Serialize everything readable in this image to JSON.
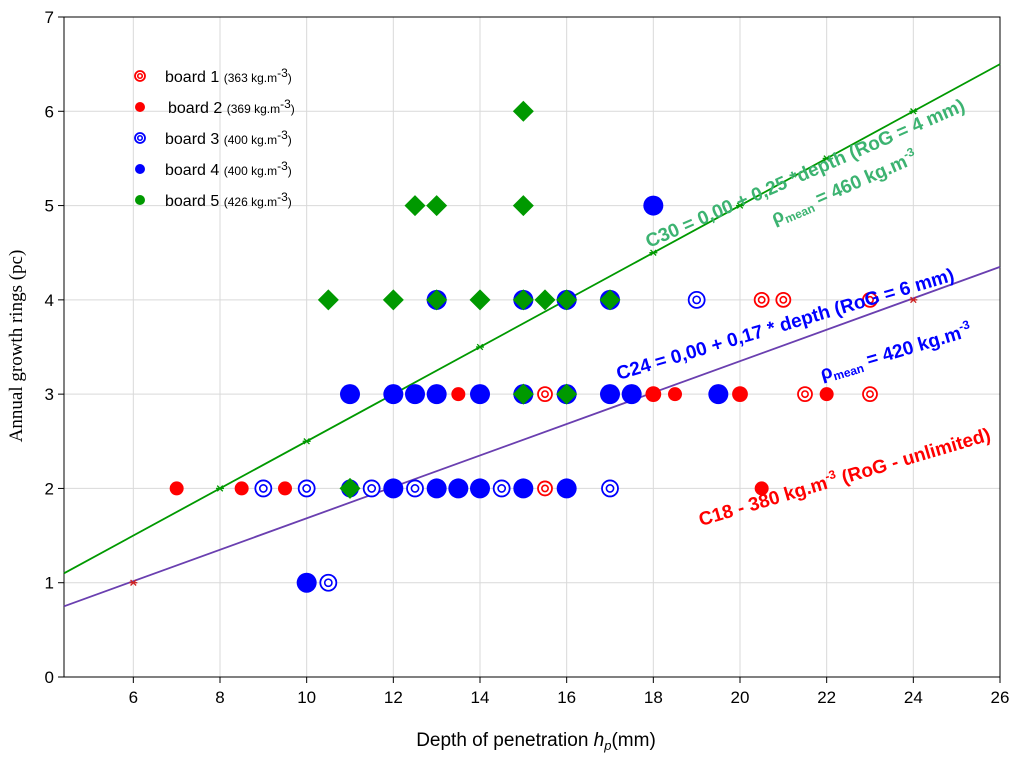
{
  "chart_data": {
    "type": "scatter",
    "xlabel_main": "Depth of penetration ",
    "xlabel_var": "h",
    "xlabel_sub": "p",
    "xlabel_unit": "(mm)",
    "ylabel": "Annual growth rings (pc)",
    "xlim": [
      4.4,
      26
    ],
    "ylim": [
      0,
      7
    ],
    "x_ticks": [
      6,
      8,
      10,
      12,
      14,
      16,
      18,
      20,
      22,
      24,
      26
    ],
    "y_ticks": [
      0,
      1,
      2,
      3,
      4,
      5,
      6,
      7
    ],
    "grid": true,
    "legend_placement": "top-left",
    "series": [
      {
        "name": "board 1",
        "name_detail": "(363 kg.m",
        "name_exp": "-3",
        "name_close": ")",
        "marker": "open-circle",
        "color": "#ff0000",
        "points": [
          [
            15.5,
            2
          ],
          [
            15.5,
            3
          ],
          [
            18,
            3
          ],
          [
            20,
            3
          ],
          [
            20.5,
            4
          ],
          [
            21,
            4
          ],
          [
            21.5,
            3
          ],
          [
            23,
            3
          ],
          [
            23,
            4
          ]
        ]
      },
      {
        "name": "board 2",
        "name_detail": "(369 kg.m",
        "name_exp": "-3",
        "name_close": ")",
        "marker": "filled-circle",
        "color": "#ff0000",
        "points": [
          [
            7,
            2
          ],
          [
            8.5,
            2
          ],
          [
            9,
            2
          ],
          [
            9.5,
            2
          ],
          [
            10,
            2
          ],
          [
            13.5,
            3
          ],
          [
            18,
            3
          ],
          [
            18.5,
            3
          ],
          [
            20,
            3
          ],
          [
            20.5,
            2
          ],
          [
            22,
            3
          ]
        ]
      },
      {
        "name": "board 3",
        "name_detail": "(400 kg.m",
        "name_exp": "-3",
        "name_close": ")",
        "marker": "open-circle",
        "color": "#0000ff",
        "points": [
          [
            9,
            2
          ],
          [
            10,
            2
          ],
          [
            10.5,
            1
          ],
          [
            11,
            2
          ],
          [
            11.5,
            2
          ],
          [
            12.5,
            2
          ],
          [
            14.5,
            2
          ],
          [
            15,
            3
          ],
          [
            15,
            4
          ],
          [
            16,
            3
          ],
          [
            16,
            4
          ],
          [
            17,
            2
          ],
          [
            19,
            4
          ]
        ]
      },
      {
        "name": "board 4",
        "name_detail": "(400 kg.m",
        "name_exp": "-3",
        "name_close": ")",
        "marker": "filled-circle",
        "color": "#0000ff",
        "points": [
          [
            10,
            1
          ],
          [
            11,
            3
          ],
          [
            12,
            2
          ],
          [
            12,
            3
          ],
          [
            12.5,
            3
          ],
          [
            13,
            2
          ],
          [
            13,
            3
          ],
          [
            13,
            4
          ],
          [
            13.5,
            2
          ],
          [
            14,
            2
          ],
          [
            14,
            3
          ],
          [
            15,
            2
          ],
          [
            15,
            3
          ],
          [
            15,
            4
          ],
          [
            16,
            2
          ],
          [
            16,
            3
          ],
          [
            16,
            4
          ],
          [
            17,
            3
          ],
          [
            17,
            4
          ],
          [
            17.5,
            3
          ],
          [
            18,
            5
          ],
          [
            19.5,
            3
          ]
        ]
      },
      {
        "name": "board 5",
        "name_detail": "(426 kg.m",
        "name_exp": "-3",
        "name_close": ")",
        "marker": "diamond",
        "color": "#009900",
        "points": [
          [
            10.5,
            4
          ],
          [
            11,
            2
          ],
          [
            12,
            4
          ],
          [
            12.5,
            5
          ],
          [
            13,
            4
          ],
          [
            13,
            5
          ],
          [
            14,
            4
          ],
          [
            15,
            3
          ],
          [
            15,
            4
          ],
          [
            15,
            5
          ],
          [
            15,
            6
          ],
          [
            15.5,
            4
          ],
          [
            16,
            3
          ],
          [
            16,
            4
          ],
          [
            17,
            4
          ]
        ]
      }
    ],
    "lines": [
      {
        "name": "C30",
        "color": "#009900",
        "from": [
          4.4,
          1.1
        ],
        "to": [
          26,
          6.5
        ],
        "markers": [
          [
            8,
            2
          ],
          [
            10,
            2.5
          ],
          [
            14,
            3.5
          ],
          [
            18,
            4.5
          ],
          [
            20,
            5
          ],
          [
            22,
            5.5
          ],
          [
            24,
            6
          ]
        ]
      },
      {
        "name": "C24",
        "color": "#6a3fb0",
        "from": [
          4.4,
          0.75
        ],
        "to": [
          26,
          4.35
        ],
        "markers": [
          [
            6,
            1
          ],
          [
            24,
            4
          ]
        ]
      }
    ],
    "annotations": [
      {
        "id": "c30",
        "text": "C30 = 0,00 + 0,25 *depth (RoG = 4 mm)",
        "color": "#3cb371",
        "x": 17.9,
        "y": 4.55,
        "angle": -23.5
      },
      {
        "id": "c30-rho",
        "rho": "ρ",
        "sub": "mean",
        "text": " = 460 kg.m",
        "sup": "-3",
        "color": "#3cb371",
        "x": 20.8,
        "y": 4.8,
        "angle": -23.5
      },
      {
        "id": "c24",
        "text": "C24 = 0,00 + 0,17 * depth (RoG = 6 mm)",
        "color": "#0000ff",
        "x": 17.2,
        "y": 3.15,
        "angle": -16.5
      },
      {
        "id": "c24-rho",
        "rho": "ρ",
        "sub": "mean",
        "text": " = 420 kg.m",
        "sup": "-3",
        "color": "#0000ff",
        "x": 21.9,
        "y": 3.15,
        "angle": -16.5
      },
      {
        "id": "c18",
        "text": "C18 - 380 kg.m",
        "sup": "-3",
        "text2": " (RoG - unlimited)",
        "color": "#ff0000",
        "x": 19.1,
        "y": 1.6,
        "angle": -16.5
      }
    ]
  }
}
